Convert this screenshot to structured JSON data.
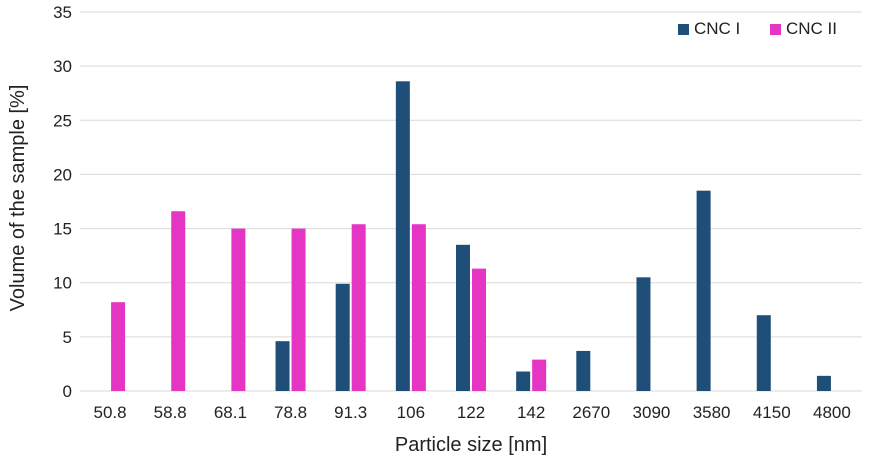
{
  "chart_data": {
    "type": "bar",
    "xlabel": "Particle size [nm]",
    "ylabel": "Volume of the sample [%]",
    "ylim": [
      0,
      35
    ],
    "yticks": [
      0,
      5,
      10,
      15,
      20,
      25,
      30,
      35
    ],
    "grid": "horizontal",
    "legend_position": "top-right",
    "categories": [
      "50.8",
      "58.8",
      "68.1",
      "78.8",
      "91.3",
      "106",
      "122",
      "142",
      "2670",
      "3090",
      "3580",
      "4150",
      "4800"
    ],
    "series": [
      {
        "name": "CNC I",
        "color": "#1f4e79",
        "values": [
          null,
          null,
          null,
          4.6,
          9.9,
          28.6,
          13.5,
          1.8,
          3.7,
          10.5,
          18.5,
          7.0,
          1.4
        ]
      },
      {
        "name": "CNC II",
        "color": "#e535c4",
        "values": [
          8.2,
          16.6,
          15.0,
          15.0,
          15.4,
          15.4,
          11.3,
          2.9,
          null,
          null,
          null,
          null,
          null
        ]
      }
    ]
  }
}
